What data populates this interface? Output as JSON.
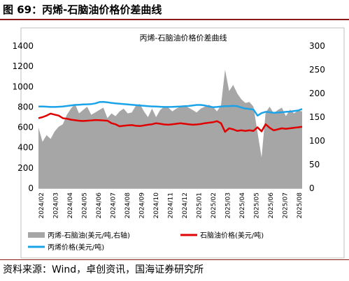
{
  "header": {
    "title": "图 69：丙烯-石脑油价格价差曲线"
  },
  "footer": {
    "source": "资料来源：Wind，卓创资讯，国海证券研究所"
  },
  "chart_data": {
    "type": "line",
    "title": "丙烯-石脑油价格价差曲线",
    "x_labels": [
      "2024/02",
      "2024/03",
      "2024/04",
      "2024/05",
      "2024/06",
      "2024/07",
      "2024/08",
      "2024/09",
      "2024/10",
      "2024/11",
      "2024/12",
      "2025/01",
      "2025/02",
      "2025/03",
      "2025/04",
      "2025/05",
      "2025/06",
      "2025/07",
      "2025/08"
    ],
    "left_axis": {
      "ylim": [
        0,
        1400
      ],
      "ticks": [
        "0",
        "200",
        "400",
        "600",
        "800",
        "1000",
        "1200",
        "1400"
      ]
    },
    "right_axis": {
      "ylim": [
        0,
        300
      ],
      "ticks": [
        "0",
        "50",
        "100",
        "150",
        "200",
        "250",
        "300"
      ]
    },
    "legend_placement": "bottom",
    "series": [
      {
        "name": "丙烯-石脑油(美元/吨,右轴)",
        "axis": "right",
        "kind": "area",
        "color": "#a6a6a6",
        "values": [
          128,
          98,
          112,
          104,
          120,
          130,
          135,
          155,
          168,
          178,
          158,
          165,
          172,
          155,
          160,
          165,
          170,
          148,
          158,
          152,
          162,
          168,
          158,
          160,
          174,
          178,
          162,
          150,
          168,
          150,
          165,
          172,
          170,
          162,
          168,
          172,
          174,
          170,
          165,
          160,
          168,
          172,
          176,
          172,
          162,
          175,
          250,
          205,
          218,
          200,
          188,
          180,
          182,
          172,
          118,
          65,
          160,
          172,
          158,
          165,
          170,
          152,
          166,
          158,
          164,
          162
        ]
      },
      {
        "name": "石脑油价格(美元/吨)",
        "axis": "left",
        "kind": "line",
        "color": "#e00000",
        "values": [
          690,
          700,
          715,
          735,
          725,
          715,
          690,
          685,
          675,
          670,
          665,
          662,
          665,
          668,
          672,
          670,
          668,
          665,
          640,
          630,
          610,
          615,
          620,
          622,
          615,
          612,
          618,
          625,
          630,
          640,
          635,
          628,
          625,
          630,
          635,
          640,
          635,
          630,
          625,
          628,
          632,
          640,
          645,
          650,
          660,
          640,
          555,
          590,
          580,
          565,
          570,
          565,
          570,
          565,
          600,
          560,
          630,
          595,
          570,
          580,
          590,
          585,
          590,
          595,
          600,
          605
        ]
      },
      {
        "name": "丙烯价格(美元/吨)",
        "axis": "left",
        "kind": "line",
        "color": "#1aa3e8",
        "values": [
          805,
          805,
          803,
          800,
          800,
          802,
          805,
          810,
          815,
          820,
          822,
          825,
          826,
          828,
          835,
          848,
          850,
          846,
          840,
          835,
          832,
          828,
          825,
          822,
          818,
          815,
          812,
          808,
          806,
          804,
          802,
          800,
          800,
          801,
          803,
          805,
          808,
          810,
          815,
          820,
          820,
          815,
          805,
          798,
          800,
          805,
          808,
          808,
          812,
          808,
          795,
          785,
          780,
          775,
          715,
          740,
          752,
          748,
          743,
          745,
          748,
          752,
          755,
          760,
          765,
          780
        ]
      }
    ]
  }
}
